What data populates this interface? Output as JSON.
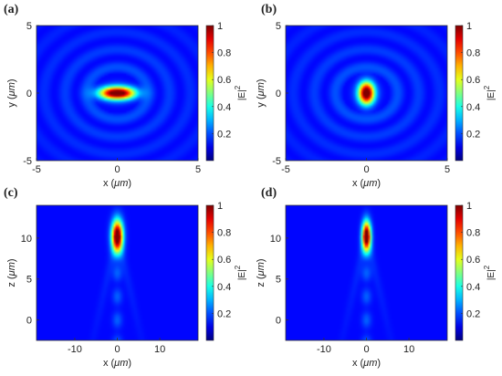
{
  "chart_data": [
    {
      "type": "heatmap",
      "panel_label": "(a)",
      "xlabel_prefix": "x (",
      "xlabel_unit": "μm",
      "xlabel_suffix": ")",
      "ylabel_prefix": "y (",
      "ylabel_unit": "μm",
      "ylabel_suffix": ")",
      "xlim": [
        -5,
        5
      ],
      "ylim": [
        -5,
        5
      ],
      "xticks": [
        -5,
        0,
        5
      ],
      "yticks": [
        -5,
        0,
        5
      ],
      "field": {
        "peak_x": 0,
        "peak_y": 0,
        "sigma_x": 0.75,
        "sigma_y": 0.32,
        "peak_value": 1,
        "ring_period": 1.3,
        "ring_amplitude": 0.12
      },
      "colorbar": {
        "label_base": "|E|",
        "label_exp": "2",
        "ticks": [
          0.2,
          0.4,
          0.6,
          0.8,
          1
        ],
        "range": [
          0,
          1
        ],
        "colormap": "jet"
      }
    },
    {
      "type": "heatmap",
      "panel_label": "(b)",
      "xlabel_prefix": "x (",
      "xlabel_unit": "μm",
      "xlabel_suffix": ")",
      "ylabel_prefix": "y (",
      "ylabel_unit": "μm",
      "ylabel_suffix": ")",
      "xlim": [
        -5,
        5
      ],
      "ylim": [
        -5,
        5
      ],
      "xticks": [
        -5,
        0,
        5
      ],
      "yticks": [
        -5,
        0,
        5
      ],
      "field": {
        "peak_x": 0,
        "peak_y": 0,
        "sigma_x": 0.33,
        "sigma_y": 0.55,
        "peak_value": 1,
        "ring_period": 1.3,
        "ring_amplitude": 0.12
      },
      "colorbar": {
        "label_base": "|E|",
        "label_exp": "2",
        "ticks": [
          0.2,
          0.4,
          0.6,
          0.8,
          1
        ],
        "range": [
          0,
          1
        ],
        "colormap": "jet"
      }
    },
    {
      "type": "heatmap",
      "panel_label": "(c)",
      "xlabel_prefix": "x (",
      "xlabel_unit": "μm",
      "xlabel_suffix": ")",
      "ylabel_prefix": "z (",
      "ylabel_unit": "μm",
      "ylabel_suffix": ")",
      "xlim": [
        -19,
        19
      ],
      "ylim": [
        -2.5,
        14
      ],
      "xticks": [
        -10,
        0,
        10
      ],
      "yticks": [
        0,
        5,
        10
      ],
      "field": {
        "peak_x": 0,
        "peak_y": 10.3,
        "sigma_x": 0.9,
        "sigma_y": 1.3,
        "peak_value": 1
      },
      "colorbar": {
        "label_base": "|E|",
        "label_exp": "2",
        "ticks": [
          0.2,
          0.4,
          0.6,
          0.8,
          1
        ],
        "range": [
          0,
          1
        ],
        "colormap": "jet"
      }
    },
    {
      "type": "heatmap",
      "panel_label": "(d)",
      "xlabel_prefix": "x (",
      "xlabel_unit": "μm",
      "xlabel_suffix": ")",
      "ylabel_prefix": "z (",
      "ylabel_unit": "μm",
      "ylabel_suffix": ")",
      "xlim": [
        -19,
        19
      ],
      "ylim": [
        -2.5,
        14
      ],
      "xticks": [
        -10,
        0,
        10
      ],
      "yticks": [
        0,
        5,
        10
      ],
      "field": {
        "peak_x": 0,
        "peak_y": 10.3,
        "sigma_x": 0.7,
        "sigma_y": 1.2,
        "peak_value": 1
      },
      "colorbar": {
        "label_base": "|E|",
        "label_exp": "2",
        "ticks": [
          0.2,
          0.4,
          0.6,
          0.8,
          1
        ],
        "range": [
          0,
          1
        ],
        "colormap": "jet"
      }
    }
  ]
}
